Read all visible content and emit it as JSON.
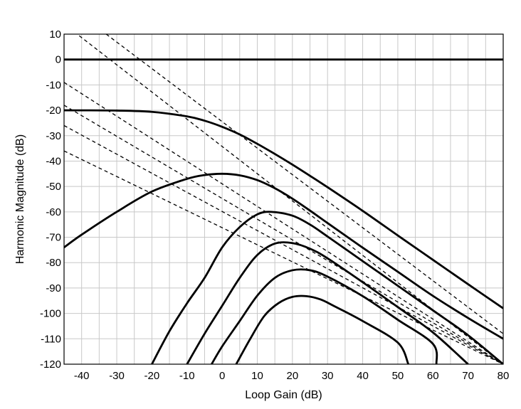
{
  "chart_data": {
    "type": "line",
    "title": "",
    "xlabel": "Loop Gain (dB)",
    "ylabel": "Harmonic Magnitude (dB)",
    "xlim": [
      -45,
      80
    ],
    "ylim": [
      -120,
      10
    ],
    "xticks": [
      -40,
      -30,
      -20,
      -10,
      0,
      10,
      20,
      30,
      40,
      50,
      60,
      70,
      80
    ],
    "yticks": [
      10,
      0,
      -10,
      -20,
      -30,
      -40,
      -50,
      -60,
      -70,
      -80,
      -90,
      -100,
      -110,
      -120
    ],
    "grid": true,
    "legend": "none",
    "series": [
      {
        "style": "solid",
        "points": [
          [
            -45,
            0
          ],
          [
            80,
            0
          ]
        ]
      },
      {
        "style": "solid",
        "points": [
          [
            -45,
            -20
          ],
          [
            -30,
            -20.1
          ],
          [
            -20,
            -20.6
          ],
          [
            -10,
            -22.4
          ],
          [
            -5,
            -24.1
          ],
          [
            0,
            -26.5
          ],
          [
            5,
            -29.5
          ],
          [
            10,
            -33.2
          ],
          [
            15,
            -37.2
          ],
          [
            20,
            -41.4
          ],
          [
            25,
            -45.8
          ],
          [
            30,
            -50.3
          ],
          [
            40,
            -59.6
          ],
          [
            50,
            -69.3
          ],
          [
            60,
            -78.9
          ],
          [
            70,
            -88.5
          ],
          [
            80,
            -98
          ]
        ]
      },
      {
        "style": "solid",
        "points": [
          [
            -45,
            -74
          ],
          [
            -40,
            -69
          ],
          [
            -30,
            -60
          ],
          [
            -20,
            -52
          ],
          [
            -10,
            -47
          ],
          [
            -5,
            -45.5
          ],
          [
            0,
            -45
          ],
          [
            5,
            -45.6
          ],
          [
            10,
            -47.5
          ],
          [
            15,
            -50.7
          ],
          [
            20,
            -54.8
          ],
          [
            25,
            -59.5
          ],
          [
            30,
            -64.4
          ],
          [
            40,
            -74.1
          ],
          [
            50,
            -83.6
          ],
          [
            60,
            -93.1
          ],
          [
            70,
            -101.8
          ],
          [
            80,
            -110
          ]
        ]
      },
      {
        "style": "solid",
        "points": [
          [
            -20,
            -120
          ],
          [
            -15,
            -107
          ],
          [
            -10,
            -96
          ],
          [
            -5,
            -86
          ],
          [
            0,
            -74
          ],
          [
            5,
            -66
          ],
          [
            10,
            -61
          ],
          [
            14,
            -60
          ],
          [
            20,
            -61.5
          ],
          [
            25,
            -65
          ],
          [
            30,
            -69.7
          ],
          [
            40,
            -79.4
          ],
          [
            50,
            -89.1
          ],
          [
            60,
            -98.8
          ],
          [
            70,
            -108.6
          ],
          [
            80,
            -120
          ]
        ]
      },
      {
        "style": "solid",
        "points": [
          [
            -10,
            -120
          ],
          [
            -5,
            -108
          ],
          [
            0,
            -97
          ],
          [
            5,
            -86
          ],
          [
            10,
            -77
          ],
          [
            15,
            -72.5
          ],
          [
            20,
            -72.3
          ],
          [
            25,
            -74.5
          ],
          [
            30,
            -78.3
          ],
          [
            40,
            -87.7
          ],
          [
            50,
            -97.5
          ],
          [
            60,
            -107.5
          ],
          [
            70,
            -120
          ]
        ]
      },
      {
        "style": "solid",
        "points": [
          [
            -3,
            -120
          ],
          [
            0,
            -113
          ],
          [
            5,
            -103
          ],
          [
            10,
            -93
          ],
          [
            15,
            -86
          ],
          [
            20,
            -83
          ],
          [
            25,
            -83
          ],
          [
            30,
            -85.5
          ],
          [
            40,
            -93.2
          ],
          [
            50,
            -102.5
          ],
          [
            60,
            -112
          ],
          [
            61,
            -120
          ]
        ]
      },
      {
        "style": "solid",
        "points": [
          [
            4,
            -120
          ],
          [
            8,
            -110
          ],
          [
            12,
            -101
          ],
          [
            16,
            -96
          ],
          [
            20,
            -93.5
          ],
          [
            24,
            -93.2
          ],
          [
            28,
            -94.5
          ],
          [
            32,
            -97.2
          ],
          [
            40,
            -103
          ],
          [
            50,
            -111.5
          ],
          [
            53,
            -120
          ]
        ]
      },
      {
        "style": "dashed",
        "points": [
          [
            -45,
            14
          ],
          [
            80,
            -120
          ]
        ]
      },
      {
        "style": "dashed",
        "points": [
          [
            -33,
            10
          ],
          [
            80,
            -108
          ]
        ]
      },
      {
        "style": "dashed",
        "points": [
          [
            -45,
            -9
          ],
          [
            80,
            -120
          ]
        ]
      },
      {
        "style": "dashed",
        "points": [
          [
            -45,
            -18
          ],
          [
            80,
            -120
          ]
        ]
      },
      {
        "style": "dashed",
        "points": [
          [
            -45,
            -26
          ],
          [
            80,
            -120
          ]
        ]
      },
      {
        "style": "dashed",
        "points": [
          [
            -45,
            -36
          ],
          [
            80,
            -120
          ]
        ]
      }
    ]
  }
}
